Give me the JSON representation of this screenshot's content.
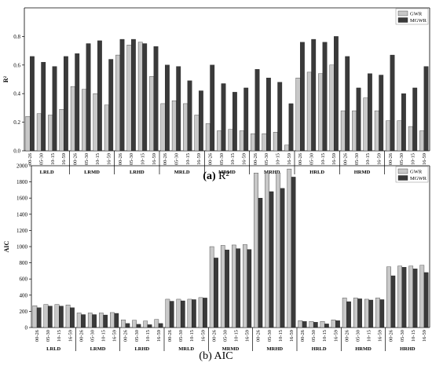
{
  "groups": [
    "LRLD",
    "LRMD",
    "LRHD",
    "MRLD",
    "MRMD",
    "MRHD",
    "HRLD",
    "HRMD",
    "HRHD"
  ],
  "times": [
    "00-26",
    "05-30",
    "10-15",
    "16-59"
  ],
  "colors": {
    "gwr": "#c8c8c8",
    "mgwr": "#3a3a3a",
    "axis": "#000000"
  },
  "chart_data": [
    {
      "type": "bar",
      "caption_letter": "(a)",
      "caption_text": "R²",
      "ylabel": "R²",
      "xlabel": "",
      "ylim": [
        0,
        1.0
      ],
      "yticks": [
        0.0,
        0.2,
        0.4,
        0.6,
        0.8
      ],
      "ytick_labels": [
        "0.0",
        "0.2",
        "0.4",
        "0.6",
        "0.8"
      ],
      "legend_position": "top-right",
      "series": [
        {
          "name": "GWR",
          "values": [
            0.24,
            0.26,
            0.25,
            0.29,
            0.45,
            0.43,
            0.4,
            0.32,
            0.67,
            0.74,
            0.76,
            0.52,
            0.33,
            0.35,
            0.33,
            0.25,
            0.19,
            0.14,
            0.15,
            0.14,
            0.12,
            0.12,
            0.13,
            0.04,
            0.51,
            0.55,
            0.54,
            0.6,
            0.28,
            0.28,
            0.37,
            0.28,
            0.21,
            0.21,
            0.17,
            0.14
          ]
        },
        {
          "name": "MGWR",
          "values": [
            0.66,
            0.62,
            0.59,
            0.66,
            0.68,
            0.75,
            0.77,
            0.64,
            0.78,
            0.78,
            0.75,
            0.73,
            0.6,
            0.59,
            0.49,
            0.42,
            0.6,
            0.47,
            0.41,
            0.44,
            0.57,
            0.51,
            0.48,
            0.33,
            0.76,
            0.78,
            0.76,
            0.8,
            0.66,
            0.44,
            0.54,
            0.53,
            0.67,
            0.4,
            0.44,
            0.59
          ]
        }
      ]
    },
    {
      "type": "bar",
      "caption_letter": "(b)",
      "caption_text": "AIC",
      "ylabel": "AIC",
      "xlabel": "",
      "ylim": [
        0,
        2000
      ],
      "yticks": [
        0,
        200,
        400,
        600,
        800,
        1000,
        1200,
        1400,
        1600,
        1800,
        2000
      ],
      "ytick_labels": [
        "0",
        "200",
        "400",
        "600",
        "800",
        "1000",
        "1200",
        "1400",
        "1600",
        "1800",
        "2000"
      ],
      "legend_position": "top-right",
      "series": [
        {
          "name": "GWR",
          "values": [
            270,
            285,
            285,
            280,
            180,
            180,
            180,
            185,
            95,
            90,
            80,
            100,
            350,
            350,
            350,
            370,
            1000,
            1015,
            1020,
            1025,
            1910,
            1910,
            1910,
            1960,
            85,
            75,
            75,
            95,
            365,
            365,
            350,
            365,
            750,
            760,
            760,
            770
          ]
        },
        {
          "name": "MGWR",
          "values": [
            245,
            265,
            265,
            245,
            160,
            160,
            155,
            175,
            50,
            40,
            35,
            50,
            325,
            330,
            345,
            365,
            860,
            960,
            975,
            965,
            1600,
            1680,
            1720,
            1860,
            75,
            65,
            45,
            85,
            320,
            355,
            340,
            345,
            640,
            745,
            725,
            680
          ]
        }
      ]
    }
  ]
}
